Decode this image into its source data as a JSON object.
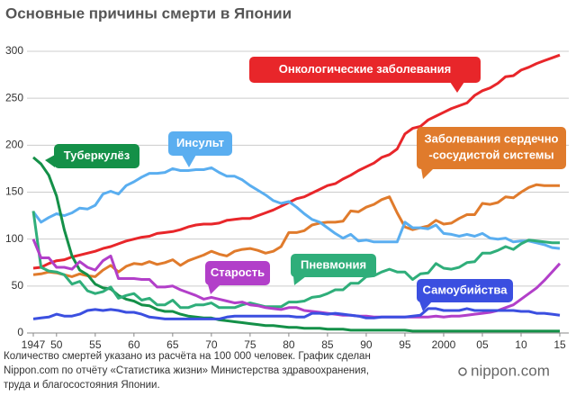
{
  "chart_data": {
    "type": "line",
    "title": "Основные причины смерти в Японии",
    "note_lines": [
      "Количество смертей указано из расчёта на 100 000 человек. График сделан",
      "Nippon.com по отчёту «Статистика жизни» Министерства здравоохранения,",
      "труда и благосостояния Японии."
    ],
    "logo": "nippon.com",
    "x": [
      1947,
      1948,
      1949,
      1950,
      1951,
      1952,
      1953,
      1954,
      1955,
      1956,
      1957,
      1958,
      1959,
      1960,
      1961,
      1962,
      1963,
      1964,
      1965,
      1966,
      1967,
      1968,
      1969,
      1970,
      1971,
      1972,
      1973,
      1974,
      1975,
      1976,
      1977,
      1978,
      1979,
      1980,
      1981,
      1982,
      1983,
      1984,
      1985,
      1986,
      1987,
      1988,
      1989,
      1990,
      1991,
      1992,
      1993,
      1994,
      1995,
      1996,
      1997,
      1998,
      1999,
      2000,
      2001,
      2002,
      2003,
      2004,
      2005,
      2006,
      2007,
      2008,
      2009,
      2010,
      2011,
      2012,
      2013,
      2014,
      2015
    ],
    "xlim": [
      1947,
      2015
    ],
    "xticks": [
      1947,
      {
        "value": 1950,
        "label": "50"
      },
      {
        "value": 1955,
        "label": "55"
      },
      {
        "value": 1960,
        "label": "60"
      },
      {
        "value": 1965,
        "label": "65"
      },
      {
        "value": 1970,
        "label": "70"
      },
      {
        "value": 1975,
        "label": "75"
      },
      {
        "value": 1980,
        "label": "80"
      },
      {
        "value": 1985,
        "label": "85"
      },
      {
        "value": 1990,
        "label": "90"
      },
      {
        "value": 1995,
        "label": "95"
      },
      2000,
      {
        "value": 2005,
        "label": "05"
      },
      {
        "value": 2010,
        "label": "10"
      },
      {
        "value": 2015,
        "label": "15"
      }
    ],
    "ylim": [
      0,
      300
    ],
    "yticks": [
      0,
      50,
      100,
      150,
      200,
      250,
      300
    ],
    "grid": true,
    "series": [
      {
        "name": "Онкологические заболевания",
        "color": "#e8262a",
        "values": [
          69,
          70,
          74,
          77,
          78,
          81,
          83,
          85,
          87,
          90,
          92,
          95,
          98,
          100,
          102,
          103,
          106,
          107,
          108,
          110,
          113,
          115,
          116,
          116,
          117,
          120,
          121,
          122,
          122,
          125,
          128,
          131,
          135,
          139,
          143,
          145,
          149,
          153,
          157,
          159,
          164,
          168,
          173,
          177,
          181,
          187,
          190,
          196,
          212,
          218,
          220,
          227,
          231,
          235,
          239,
          242,
          245,
          253,
          258,
          261,
          266,
          273,
          274,
          280,
          283,
          287,
          290,
          293,
          296
        ]
      },
      {
        "name": "Заболевания сердечно\n-сосудистой системы",
        "color": "#e07b2c",
        "values": [
          62,
          63,
          65,
          64,
          62,
          60,
          63,
          61,
          60,
          67,
          72,
          65,
          71,
          74,
          73,
          76,
          73,
          75,
          78,
          72,
          77,
          80,
          83,
          87,
          84,
          82,
          87,
          89,
          90,
          88,
          85,
          87,
          92,
          107,
          107,
          109,
          115,
          117,
          118,
          118,
          119,
          130,
          129,
          134,
          137,
          142,
          145,
          128,
          113,
          110,
          112,
          114,
          120,
          116,
          117,
          122,
          126,
          126,
          138,
          137,
          139,
          145,
          144,
          150,
          155,
          158,
          157,
          157,
          157
        ]
      },
      {
        "name": "Инсульт",
        "color": "#5aaef0",
        "values": [
          129,
          118,
          123,
          127,
          125,
          128,
          133,
          132,
          136,
          148,
          151,
          148,
          157,
          161,
          166,
          170,
          170,
          171,
          175,
          173,
          173,
          174,
          174,
          176,
          171,
          167,
          167,
          163,
          157,
          152,
          147,
          141,
          138,
          140,
          134,
          127,
          121,
          118,
          112,
          106,
          101,
          105,
          98,
          99,
          97,
          97,
          97,
          97,
          118,
          112,
          112,
          111,
          115,
          106,
          105,
          103,
          105,
          103,
          106,
          101,
          100,
          101,
          97,
          98,
          98,
          96,
          94,
          91,
          90
        ]
      },
      {
        "name": "Туберкулёз",
        "color": "#149048",
        "values": [
          187,
          180,
          168,
          146,
          110,
          82,
          67,
          62,
          52,
          48,
          47,
          40,
          36,
          34,
          30,
          29,
          25,
          23,
          23,
          20,
          18,
          17,
          16,
          16,
          14,
          13,
          12,
          11,
          10,
          9,
          8,
          8,
          7,
          6,
          6,
          5,
          5,
          5,
          4,
          4,
          4,
          3,
          3,
          3,
          3,
          3,
          3,
          3,
          3,
          2,
          2,
          2,
          2,
          2,
          2,
          2,
          2,
          2,
          2,
          2,
          2,
          2,
          2,
          2,
          2,
          2,
          2,
          2,
          2
        ]
      },
      {
        "name": "Пневмония",
        "color": "#2fae7a",
        "values": [
          130,
          70,
          66,
          65,
          62,
          52,
          55,
          45,
          42,
          44,
          49,
          37,
          40,
          42,
          35,
          37,
          30,
          30,
          35,
          27,
          27,
          30,
          30,
          32,
          27,
          27,
          27,
          30,
          32,
          30,
          28,
          28,
          28,
          33,
          33,
          34,
          38,
          39,
          42,
          46,
          46,
          53,
          53,
          60,
          61,
          65,
          68,
          65,
          65,
          57,
          63,
          64,
          74,
          69,
          68,
          70,
          75,
          76,
          85,
          85,
          88,
          92,
          89,
          95,
          99,
          98,
          97,
          96,
          96
        ]
      },
      {
        "name": "Старость",
        "color": "#b23fc9",
        "values": [
          100,
          80,
          80,
          70,
          70,
          68,
          76,
          70,
          67,
          77,
          82,
          58,
          58,
          58,
          57,
          57,
          49,
          49,
          50,
          46,
          43,
          40,
          36,
          38,
          36,
          34,
          32,
          33,
          30,
          29,
          27,
          26,
          25,
          27,
          27,
          24,
          23,
          22,
          21,
          20,
          19,
          19,
          18,
          18,
          17,
          17,
          17,
          17,
          17,
          17,
          17,
          17,
          18,
          17,
          18,
          18,
          19,
          20,
          21,
          22,
          24,
          27,
          30,
          36,
          42,
          48,
          56,
          65,
          74
        ]
      },
      {
        "name": "Самоубийства",
        "color": "#3b4fe0",
        "values": [
          15,
          16,
          17,
          20,
          18,
          18,
          20,
          24,
          25,
          24,
          25,
          24,
          22,
          22,
          20,
          17,
          16,
          15,
          15,
          15,
          15,
          15,
          15,
          15,
          15,
          17,
          18,
          18,
          18,
          18,
          18,
          18,
          18,
          18,
          17,
          17,
          21,
          21,
          20,
          21,
          20,
          19,
          18,
          16,
          16,
          17,
          17,
          17,
          17,
          18,
          19,
          26,
          26,
          24,
          24,
          24,
          26,
          24,
          24,
          24,
          24,
          24,
          24,
          23,
          23,
          21,
          21,
          20,
          19
        ]
      }
    ]
  }
}
